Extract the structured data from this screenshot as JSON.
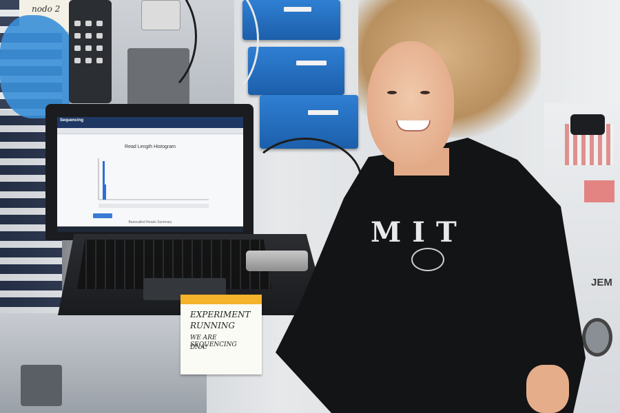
{
  "scene": {
    "description_free": true
  },
  "sticky_top_left": {
    "text": "nodo 2"
  },
  "laptop_screen": {
    "app_title": "Sequencing",
    "chart_title": "Read Length Histogram",
    "footer": "Basecalled Reads Summary"
  },
  "sticky_note": {
    "line1": "EXPERIMENT",
    "line2": "RUNNING",
    "line3": "WE ARE SEQUENCING",
    "line4": "DNA!"
  },
  "shirt": {
    "text": "MIT"
  },
  "wall_label": {
    "text": "JEM"
  },
  "colors": {
    "module_blue": "#1f6fc4",
    "shirt_black": "#131416",
    "note_tape": "#f4b32b",
    "glove_blue": "#3a8fd8"
  }
}
